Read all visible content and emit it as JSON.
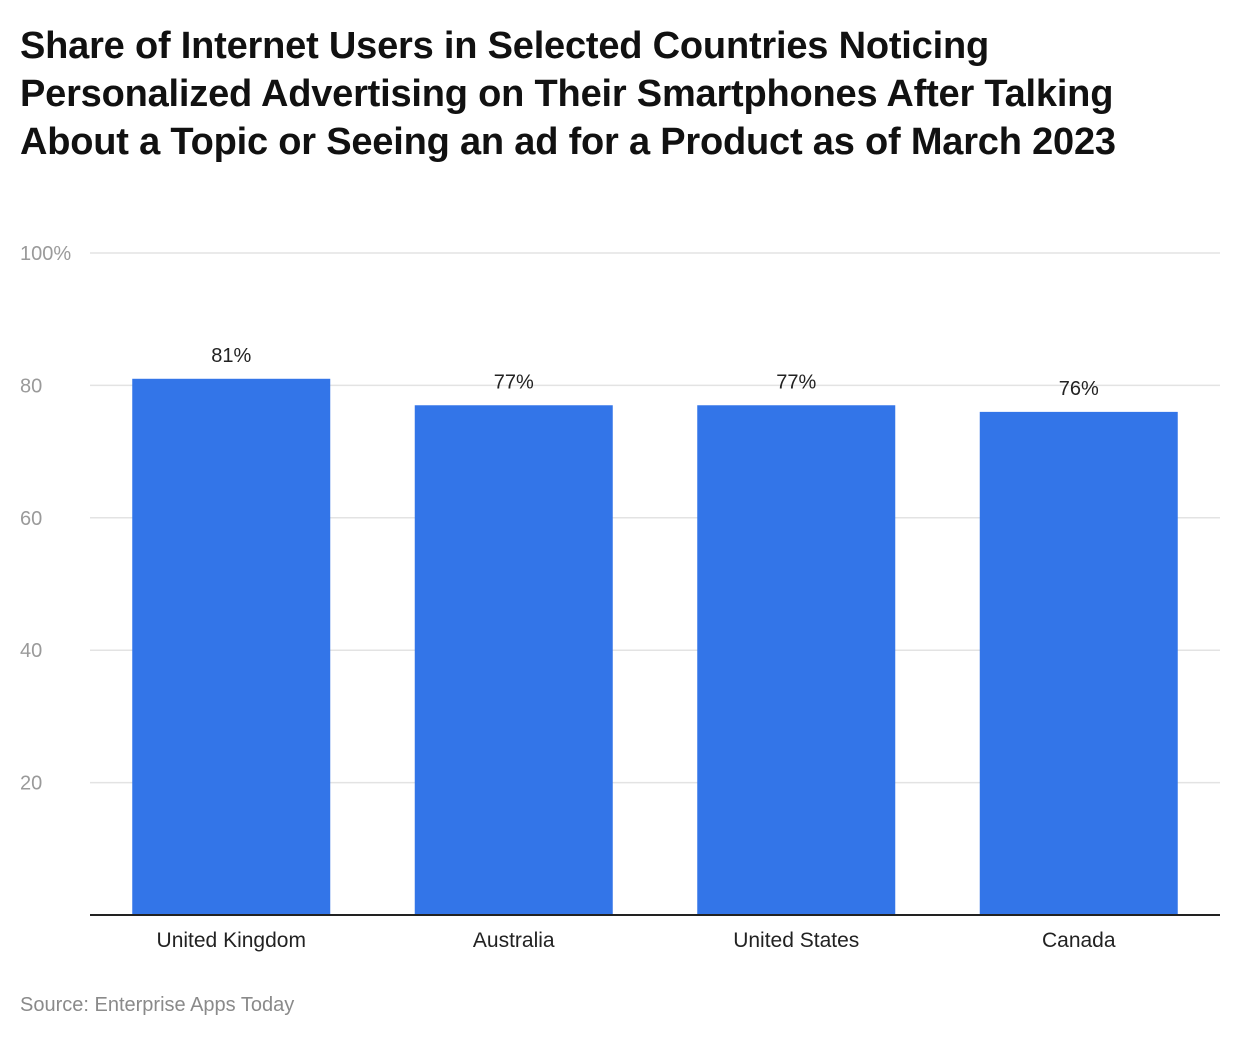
{
  "title": "Share of Internet Users in Selected Countries Noticing Personalized Advertising on Their Smartphones After Talking About a Topic or Seeing an ad for a Product as of March 2023",
  "source": "Source: Enterprise Apps Today",
  "colors": {
    "bar": "#3375e8",
    "grid": "#e3e3e3",
    "axis": "#222222"
  },
  "chart_data": {
    "type": "bar",
    "title": "Share of Internet Users in Selected Countries Noticing Personalized Advertising on Their Smartphones After Talking About a Topic or Seeing an ad for a Product as of March 2023",
    "categories": [
      "United Kingdom",
      "Australia",
      "United States",
      "Canada"
    ],
    "values": [
      81,
      77,
      77,
      76
    ],
    "data_labels": [
      "81%",
      "77%",
      "77%",
      "76%"
    ],
    "y_ticks": [
      20,
      40,
      60,
      80,
      100
    ],
    "y_tick_labels": [
      "20",
      "40",
      "60",
      "80",
      "100%"
    ],
    "ylim": [
      0,
      100
    ],
    "xlabel": "",
    "ylabel": "",
    "grid": true,
    "legend": "none"
  }
}
